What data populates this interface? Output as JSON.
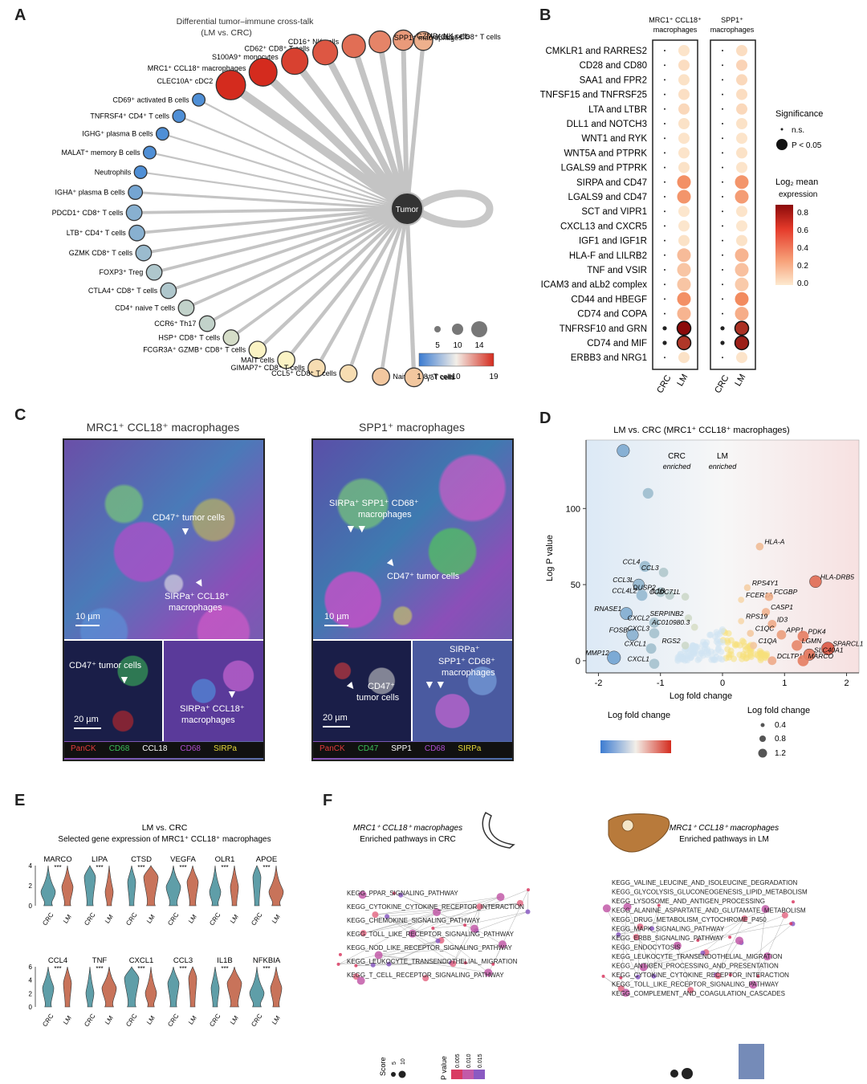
{
  "panels": {
    "A": {
      "label": "A",
      "title_line1": "Differential tumor–immune cross-talk",
      "title_line2": "(LM vs. CRC)",
      "hub_label": "Tumor",
      "size_legend": [
        "5",
        "10",
        "14"
      ],
      "color_legend": [
        "1",
        "10",
        "19"
      ],
      "nodes": [
        {
          "label": "XCL1⁺ CD8⁺ T cells",
          "value": 13,
          "size": 7
        },
        {
          "label": "GZMB⁺ NK cells",
          "value": 14,
          "size": 8
        },
        {
          "label": "SPP1⁺ macrophages",
          "value": 15,
          "size": 9
        },
        {
          "label": "CD16⁺ NK cells",
          "value": 16,
          "size": 10
        },
        {
          "label": "CD62⁺ CD8⁺ T cells",
          "value": 17,
          "size": 11
        },
        {
          "label": "S100A9⁺ monocytes",
          "value": 18,
          "size": 12
        },
        {
          "label": "MRC1⁺ CCL18⁺ macrophages",
          "value": 19,
          "size": 13
        },
        {
          "label": "CLEC10A⁺ cDC2",
          "value": 19,
          "size": 14
        },
        {
          "label": "CD69⁺ activated B cells",
          "value": 1,
          "size": 3
        },
        {
          "label": "TNFRSF4⁺ CD4⁺ T cells",
          "value": 1,
          "size": 3
        },
        {
          "label": "IGHG⁺ plasma B cells",
          "value": 1,
          "size": 3
        },
        {
          "label": "MALAT⁺ memory B cells",
          "value": 1,
          "size": 3
        },
        {
          "label": "Neutrophils",
          "value": 1,
          "size": 3
        },
        {
          "label": "IGHA⁺ plasma B cells",
          "value": 3,
          "size": 4
        },
        {
          "label": "PDCD1⁺ CD8⁺ T cells",
          "value": 4,
          "size": 5
        },
        {
          "label": "LTB⁺ CD4⁺ T cells",
          "value": 4,
          "size": 5
        },
        {
          "label": "GZMK CD8⁺ T cells",
          "value": 5,
          "size": 5
        },
        {
          "label": "FOXP3⁺ Treg",
          "value": 6,
          "size": 5
        },
        {
          "label": "CTLA4⁺ CD8⁺ T cells",
          "value": 6,
          "size": 5
        },
        {
          "label": "CD4⁺ naive T cells",
          "value": 7,
          "size": 5
        },
        {
          "label": "CCR6⁺ Th17",
          "value": 7,
          "size": 5
        },
        {
          "label": "HSP⁺ CD8⁺ T cells",
          "value": 8,
          "size": 5
        },
        {
          "label": "FCGR3A⁺ GZMB⁺ CD8⁺ T cells",
          "value": 10,
          "size": 6
        },
        {
          "label": "MAIT cells",
          "value": 10,
          "size": 6
        },
        {
          "label": "GIMAP7⁺ CD8⁺ T cells",
          "value": 11,
          "size": 6
        },
        {
          "label": "CCL5⁺ CD8⁺ T cells",
          "value": 11,
          "size": 6
        },
        {
          "label": "Naive CD8⁺ T cells",
          "value": 12,
          "size": 6
        },
        {
          "label": "γδT cells",
          "value": 12,
          "size": 7
        }
      ]
    },
    "B": {
      "label": "B",
      "col_group1": "MRC1⁺ CCL18⁺",
      "col_group1b": "macrophages",
      "col_group2": "SPP1⁺",
      "col_group2b": "macrophages",
      "x_labels": [
        "CRC",
        "LM"
      ],
      "sig_title": "Significance",
      "sig_items": [
        "n.s.",
        "P < 0.05"
      ],
      "expr_title": "Log₂ mean",
      "expr_title2": "expression",
      "expr_ticks": [
        "0.8",
        "0.6",
        "0.4",
        "0.2",
        "0.0"
      ],
      "pairs": [
        {
          "label": "CMKLR1 and RARRES2",
          "m": 0.05,
          "s": 0.08
        },
        {
          "label": "CD28 and CD80",
          "m": 0.08,
          "s": 0.12
        },
        {
          "label": "SAA1 and FPR2",
          "m": 0.06,
          "s": 0.1
        },
        {
          "label": "TNFSF15 and TNFRSF25",
          "m": 0.07,
          "s": 0.08
        },
        {
          "label": "LTA and LTBR",
          "m": 0.1,
          "s": 0.1
        },
        {
          "label": "DLL1 and NOTCH3",
          "m": 0.06,
          "s": 0.06
        },
        {
          "label": "WNT1 and RYK",
          "m": 0.05,
          "s": 0.05
        },
        {
          "label": "WNT5A and PTPRK",
          "m": 0.05,
          "s": 0.06
        },
        {
          "label": "LGALS9 and PTPRK",
          "m": 0.06,
          "s": 0.05
        },
        {
          "label": "SIRPA and CD47",
          "m": 0.4,
          "s": 0.38
        },
        {
          "label": "LGALS9 and CD47",
          "m": 0.38,
          "s": 0.35
        },
        {
          "label": "SCT and VIPR1",
          "m": 0.04,
          "s": 0.05
        },
        {
          "label": "CXCL13 and CXCR5",
          "m": 0.04,
          "s": 0.04
        },
        {
          "label": "IGF1 and IGF1R",
          "m": 0.06,
          "s": 0.06
        },
        {
          "label": "HLA-F and LILRB2",
          "m": 0.22,
          "s": 0.25
        },
        {
          "label": "TNF and VSIR",
          "m": 0.18,
          "s": 0.2
        },
        {
          "label": "ICAM3 and aLb2 complex",
          "m": 0.18,
          "s": 0.16
        },
        {
          "label": "CD44 and HBEGF",
          "m": 0.4,
          "s": 0.42
        },
        {
          "label": "CD74 and COPA",
          "m": 0.25,
          "s": 0.28
        },
        {
          "label": "TNFRSF10 and GRN",
          "m": 0.85,
          "s": 0.72
        },
        {
          "label": "CD74 and MIF",
          "m": 0.7,
          "s": 0.78
        },
        {
          "label": "ERBB3 and NRG1",
          "m": 0.06,
          "s": 0.05
        }
      ]
    },
    "C": {
      "label": "C",
      "title_left": "MRC1⁺ CCL18⁺ macrophages",
      "title_right": "SPP1⁺ macrophages",
      "left_ann1": "CD47⁺ tumor cells",
      "left_ann2a": "SIRPa⁺ CCL18⁺",
      "left_ann2b": "macrophages",
      "left_scale": "10 µm",
      "left_inset1": "CD47⁺ tumor cells",
      "left_inset_scale": "20 µm",
      "left_inset2a": "SIRPa⁺ CCL18⁺",
      "left_inset2b": "macrophages",
      "right_ann1a": "SIRPa⁺ SPP1⁺ CD68⁺",
      "right_ann1b": "macrophages",
      "right_ann2": "CD47⁺ tumor cells",
      "right_scale": "10 µm",
      "right_inset1a": "CD47⁺",
      "right_inset1b": "tumor cells",
      "right_inset_scale": "20 µm",
      "right_inset2a": "SIRPa⁺",
      "right_inset2b": "SPP1⁺ CD68⁺",
      "right_inset2c": "macrophages",
      "legend_left": [
        "PanCK",
        "CD68",
        "CCL18",
        "CD68",
        "SIRPa"
      ],
      "legend_right": [
        "PanCK",
        "CD47",
        "SPP1",
        "CD68",
        "SIRPa"
      ]
    },
    "D": {
      "label": "D",
      "title": "LM vs. CRC (MRC1⁺ CCL18⁺ macrophages)",
      "crc_label1": "CRC",
      "crc_label2": "enriched",
      "lm_label1": "LM",
      "lm_label2": "enriched",
      "xlabel": "Log fold change",
      "ylabel": "Log P value",
      "legend_color_title": "Log fold change",
      "legend_size_title": "Log fold change",
      "legend_size_items": [
        "0.4",
        "0.8",
        "1.2"
      ],
      "chart_data": {
        "type": "scatter",
        "xlabel": "Log fold change",
        "ylabel": "Log P value",
        "xlim": [
          -2.2,
          2.2
        ],
        "ylim": [
          -8,
          145
        ],
        "xticks": [
          "-2",
          "-1",
          "0",
          "1",
          "2"
        ],
        "yticks": [
          "0",
          "50",
          "100"
        ],
        "points": [
          {
            "x": -1.6,
            "y": 138,
            "label": ""
          },
          {
            "x": -1.2,
            "y": 110,
            "label": ""
          },
          {
            "x": 1.5,
            "y": 52,
            "label": "HLA-DRB5"
          },
          {
            "x": 0.6,
            "y": 75,
            "label": "HLA-A"
          },
          {
            "x": -1.25,
            "y": 62,
            "label": "CCL4"
          },
          {
            "x": -0.95,
            "y": 58,
            "label": "CCL3"
          },
          {
            "x": -1.35,
            "y": 50,
            "label": "CCL3L"
          },
          {
            "x": -1.3,
            "y": 43,
            "label": "CCL4L2"
          },
          {
            "x": -1.0,
            "y": 45,
            "label": "DUSP2"
          },
          {
            "x": -0.85,
            "y": 43,
            "label": "IL1B"
          },
          {
            "x": -0.6,
            "y": 42,
            "label": "CCDC71L"
          },
          {
            "x": -1.55,
            "y": 31,
            "label": "RNASE1"
          },
          {
            "x": -1.1,
            "y": 25,
            "label": "CXCL2"
          },
          {
            "x": -0.55,
            "y": 28,
            "label": "SERPINB2"
          },
          {
            "x": -0.45,
            "y": 22,
            "label": "AC010980.3"
          },
          {
            "x": -1.45,
            "y": 17,
            "label": "FOSB"
          },
          {
            "x": -1.1,
            "y": 18,
            "label": "CXCL3"
          },
          {
            "x": -1.15,
            "y": 8,
            "label": "CXCL1"
          },
          {
            "x": -0.6,
            "y": 10,
            "label": "RGS2"
          },
          {
            "x": -1.75,
            "y": 2,
            "label": "MMP12"
          },
          {
            "x": -1.1,
            "y": -2,
            "label": "CXCL1"
          },
          {
            "x": 0.4,
            "y": 48,
            "label": "RPS4Y1"
          },
          {
            "x": 0.3,
            "y": 40,
            "label": "FCER1A"
          },
          {
            "x": 0.75,
            "y": 42,
            "label": "FCGBP"
          },
          {
            "x": 0.7,
            "y": 32,
            "label": "CASP1"
          },
          {
            "x": 0.3,
            "y": 26,
            "label": "RPS19"
          },
          {
            "x": 0.8,
            "y": 24,
            "label": "ID3"
          },
          {
            "x": 0.45,
            "y": 18,
            "label": "C1QC"
          },
          {
            "x": 0.95,
            "y": 17,
            "label": "APP1"
          },
          {
            "x": 1.3,
            "y": 16,
            "label": "PDK4"
          },
          {
            "x": 0.5,
            "y": 10,
            "label": "C1QA"
          },
          {
            "x": 1.2,
            "y": 10,
            "label": "LGMN"
          },
          {
            "x": 1.7,
            "y": 8,
            "label": "SPARCL1"
          },
          {
            "x": 1.4,
            "y": 4,
            "label": "SLC40A1"
          },
          {
            "x": 0.8,
            "y": 0,
            "label": "DCLTP1"
          },
          {
            "x": 1.3,
            "y": 0,
            "label": "MARCO"
          }
        ]
      }
    },
    "E": {
      "label": "E",
      "title1": "LM vs. CRC",
      "title2": "Selected gene expression of MRC1⁺ CCL18⁺ macrophages",
      "row1": [
        "MARCO",
        "LIPA",
        "CTSD",
        "VEGFA",
        "OLR1",
        "APOE"
      ],
      "row2": [
        "CCL4",
        "TNF",
        "CXCL1",
        "CCL3",
        "IL1B",
        "NFKBIA"
      ],
      "stars": "***",
      "x_labels": [
        "CRC",
        "LM"
      ],
      "row1_ylim": [
        0,
        4
      ],
      "row2_ylim": [
        0,
        6
      ]
    },
    "F": {
      "label": "F",
      "left_title1": "MRC1⁺ CCL18⁺ macrophages",
      "left_title2": "Enriched pathways in CRC",
      "right_title1": "MRC1⁺ CCL18⁺ macrophages",
      "right_title2": "Enriched pathways in LM",
      "left_terms": [
        "KEGG_PPAR_SIGNALING_PATHWAY",
        "KEGG_CYTOKINE_CYTOKINE_RECEPTOR_INTERACTION",
        "KEGG_CHEMOKINE_SIGNALING_PATHWAY",
        "KEGG_TOLL_LIKE_RECEPTOR_SIGNALING_PATHWAY",
        "KEGG_NOD_LIKE_RECEPTOR_SIGNALING_PATHWAY",
        "KEGG_LEUKOCYTE_TRANSENDOTHELIAL_MIGRATION",
        "KEGG_T_CELL_RECEPTOR_SIGNALING_PATHWAY"
      ],
      "right_terms": [
        "KEGG_VALINE_LEUCINE_AND_ISOLEUCINE_DEGRADATION",
        "KEGG_GLYCOLYSIS_GLUCONEOGENESIS_LIPID_METABOLISM",
        "KEGG_LYSOSOME_AND_ANTIGEN_PROCESSING",
        "KEGG_ALANINE_ASPARTATE_AND_GLUTAMATE_METABOLISM",
        "KEGG_DRUG_METABOLISM_CYTOCHROME_P450",
        "KEGG_MAPK_SIGNALING_PATHWAY",
        "KEGG_ERBB_SIGNALING_PATHWAY",
        "KEGG_ENDOCYTOSIS",
        "KEGG_LEUKOCYTE_TRANSENDOTHELIAL_MIGRATION",
        "KEGG_ANTIGEN_PROCESSING_AND_PRESENTATION",
        "KEGG_CYTOKINE_CYTOKINE_RECEPTOR_INTERACTION",
        "KEGG_TOLL_LIKE_RECEPTOR_SIGNALING_PATHWAY",
        "KEGG_COMPLEMENT_AND_COAGULATION_CASCADES"
      ],
      "legend_score": "Score",
      "legend_score_items": [
        "5",
        "10"
      ],
      "legend_p": "P value",
      "legend_p_items": [
        "0.005",
        "0.010",
        "0.015"
      ]
    }
  },
  "colors": {
    "coolwarm_low": "#3b7bd1",
    "coolwarm_mid": "#fff2b0",
    "coolwarm_high": "#d42b1e",
    "expr_high": "#8b0a0a",
    "expr_low": "#fde9cf",
    "hub": "#333333",
    "pathway_pink": "#d93b63"
  }
}
